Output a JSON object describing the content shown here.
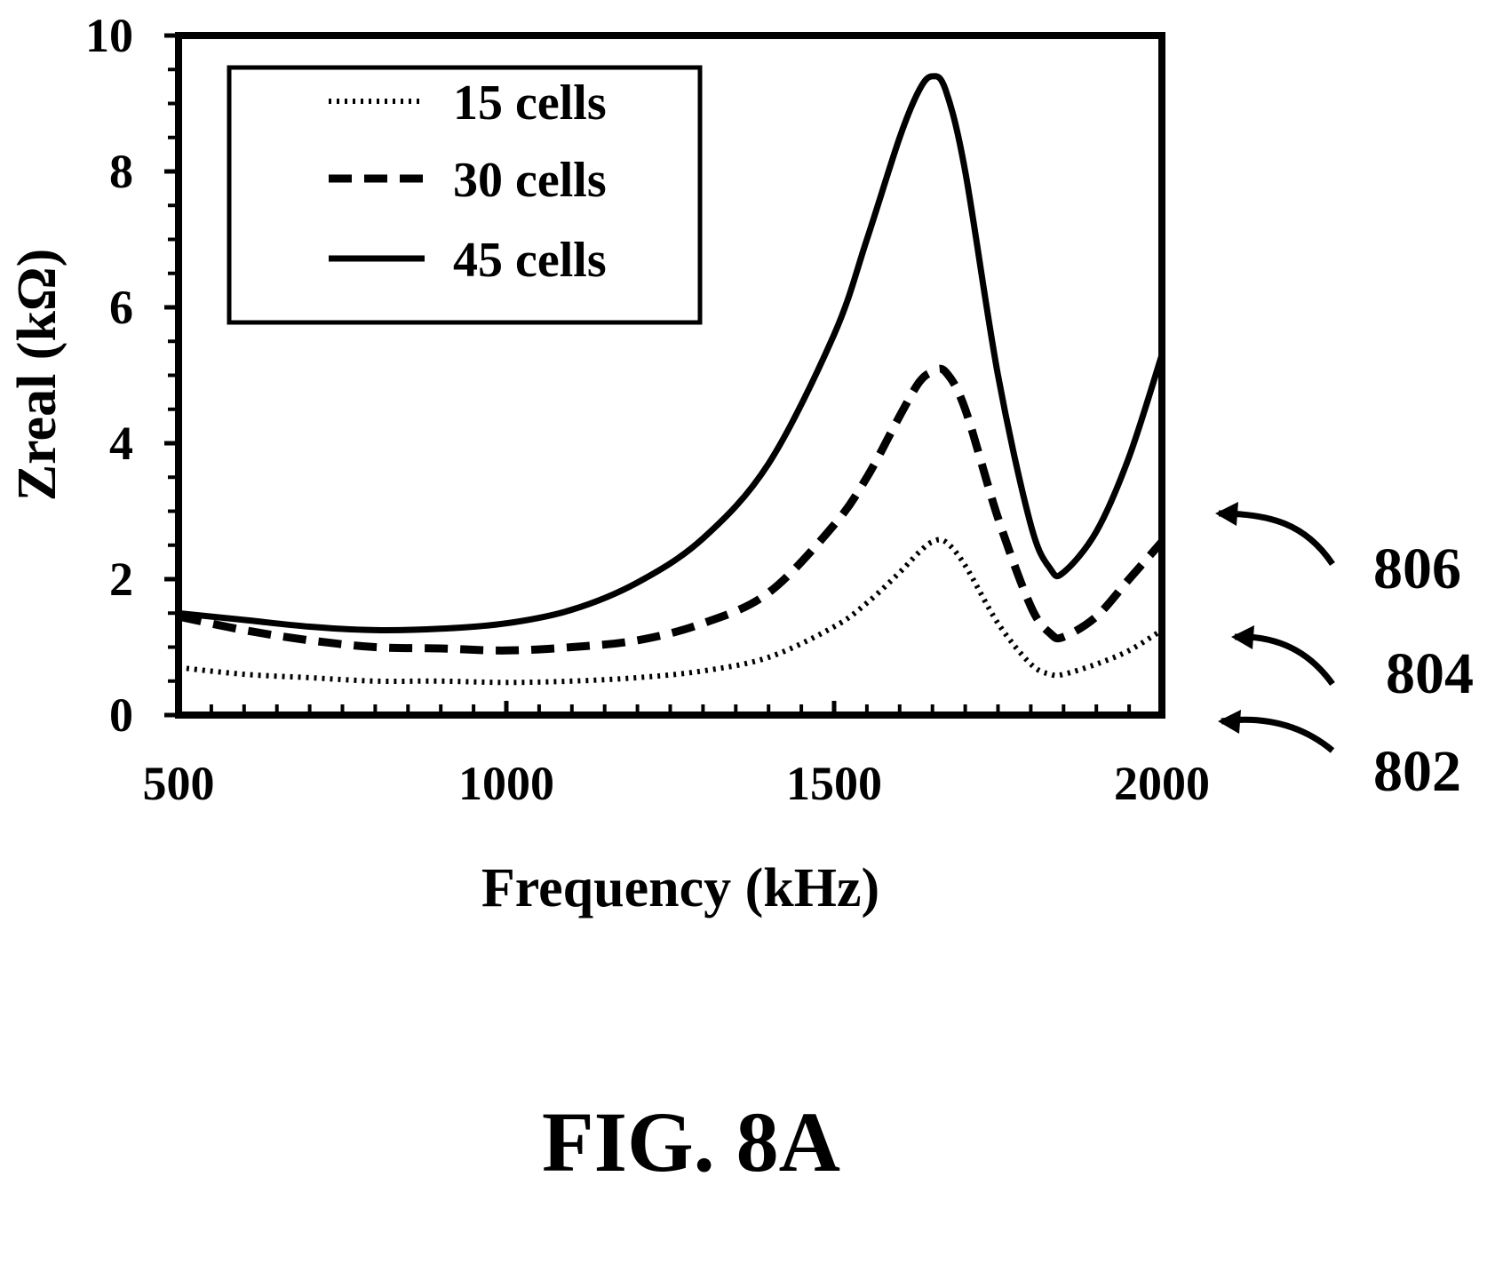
{
  "chart_data": {
    "type": "line",
    "title": "",
    "xlabel": "Frequency (kHz)",
    "ylabel": "Zreal (kΩ)",
    "xlim": [
      500,
      2000
    ],
    "ylim": [
      0,
      10
    ],
    "x_ticks": [
      "500",
      "1000",
      "1500",
      "2000"
    ],
    "y_ticks": [
      "0",
      "2",
      "4",
      "6",
      "8",
      "10"
    ],
    "grid": false,
    "legend_position": "top-left",
    "x": [
      500,
      600,
      700,
      800,
      900,
      1000,
      1100,
      1200,
      1300,
      1400,
      1500,
      1550,
      1600,
      1630,
      1650,
      1670,
      1700,
      1750,
      1800,
      1830,
      1850,
      1900,
      1950,
      2000
    ],
    "series": [
      {
        "name": "15 cells",
        "style": "dotted",
        "callout": "802",
        "values": [
          0.7,
          0.6,
          0.55,
          0.5,
          0.5,
          0.48,
          0.5,
          0.55,
          0.65,
          0.85,
          1.3,
          1.65,
          2.1,
          2.4,
          2.55,
          2.55,
          2.2,
          1.35,
          0.75,
          0.6,
          0.6,
          0.75,
          0.95,
          1.25
        ]
      },
      {
        "name": "30 cells",
        "style": "dashed",
        "callout": "804",
        "values": [
          1.45,
          1.25,
          1.1,
          1.0,
          0.98,
          0.95,
          1.0,
          1.1,
          1.35,
          1.8,
          2.8,
          3.5,
          4.4,
          4.9,
          5.05,
          5.05,
          4.5,
          2.9,
          1.6,
          1.2,
          1.15,
          1.45,
          2.0,
          2.55
        ]
      },
      {
        "name": "45 cells",
        "style": "solid",
        "callout": "806",
        "values": [
          1.5,
          1.4,
          1.3,
          1.25,
          1.27,
          1.35,
          1.55,
          1.95,
          2.6,
          3.7,
          5.6,
          7.0,
          8.5,
          9.2,
          9.4,
          9.2,
          8.0,
          5.0,
          2.8,
          2.15,
          2.1,
          2.7,
          3.8,
          5.3
        ]
      }
    ]
  },
  "figure_label": "FIG. 8A"
}
